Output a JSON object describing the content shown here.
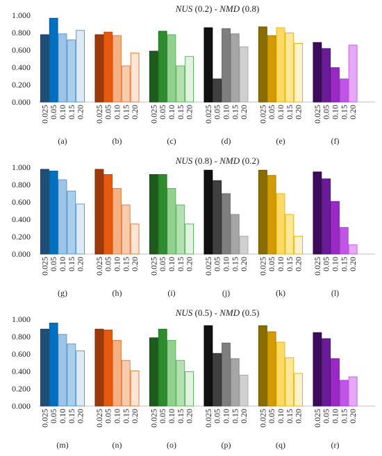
{
  "rows": [
    {
      "title_parts": [
        "NUS",
        " (0.2) - ",
        "NMD",
        " (0.8)"
      ],
      "panels": [
        "(a)",
        "(b)",
        "(c)",
        "(d)",
        "(e)",
        "(f)"
      ]
    },
    {
      "title_parts": [
        "NUS",
        " (0.8) - ",
        "NMD",
        " (0.2)"
      ],
      "panels": [
        "(g)",
        "(h)",
        "(i)",
        "(j)",
        "(k)",
        "(l)"
      ]
    },
    {
      "title_parts": [
        "NUS",
        " (0.5) - ",
        "NMD",
        " (0.5)"
      ],
      "panels": [
        "(m)",
        "(n)",
        "(o)",
        "(p)",
        "(q)",
        "(r)"
      ]
    }
  ],
  "chart_data": {
    "type": "bar",
    "categories": [
      "0.025",
      "0.05",
      "0.10",
      "0.15",
      "0.20"
    ],
    "y_tick_labels": [
      "0.000",
      "0.200",
      "0.400",
      "0.600",
      "0.800",
      "1.000"
    ],
    "ylim": [
      0,
      1
    ],
    "grid": false,
    "palettes": [
      {
        "fill": [
          "#1f4e79",
          "#0070c0",
          "#9dc3e6",
          "#a9cfec",
          "#deebf7"
        ],
        "stroke": [
          "#163a5c",
          "#005a9c",
          "#5b9bd5",
          "#5b9bd5",
          "#5b9bd5"
        ]
      },
      {
        "fill": [
          "#9c3a0a",
          "#e8590c",
          "#f4b183",
          "#f8cbad",
          "#fce4d6"
        ],
        "stroke": [
          "#7a2c06",
          "#c44a08",
          "#e67e3a",
          "#e67e3a",
          "#e67e3a"
        ]
      },
      {
        "fill": [
          "#1e5c1e",
          "#2e8b2e",
          "#92d08f",
          "#b5e0b2",
          "#e2f3e0"
        ],
        "stroke": [
          "#154515",
          "#227022",
          "#5cb85c",
          "#5cb85c",
          "#5cb85c"
        ]
      },
      {
        "fill": [
          "#111111",
          "#404040",
          "#7f7f7f",
          "#a6a6a6",
          "#d0d0d0"
        ],
        "stroke": [
          "#000000",
          "#2a2a2a",
          "#666666",
          "#888888",
          "#aaaaaa"
        ]
      },
      {
        "fill": [
          "#8a6d00",
          "#d49b00",
          "#ffd966",
          "#ffe699",
          "#fff2cc"
        ],
        "stroke": [
          "#6b5400",
          "#b08000",
          "#e6b800",
          "#e6b800",
          "#e6b800"
        ]
      },
      {
        "fill": [
          "#3d0a5c",
          "#6a1b9a",
          "#9b27c7",
          "#c055e8",
          "#e6a8f7"
        ],
        "stroke": [
          "#2a0640",
          "#4e1272",
          "#7a1fa0",
          "#a040d0",
          "#c060e8"
        ]
      }
    ],
    "panels": [
      {
        "label": "(a)",
        "values": [
          0.78,
          0.97,
          0.79,
          0.72,
          0.83
        ]
      },
      {
        "label": "(b)",
        "values": [
          0.78,
          0.81,
          0.77,
          0.42,
          0.57
        ]
      },
      {
        "label": "(c)",
        "values": [
          0.59,
          0.82,
          0.78,
          0.42,
          0.53
        ]
      },
      {
        "label": "(d)",
        "values": [
          0.86,
          0.27,
          0.85,
          0.79,
          0.64
        ]
      },
      {
        "label": "(e)",
        "values": [
          0.87,
          0.77,
          0.86,
          0.8,
          0.68
        ]
      },
      {
        "label": "(f)",
        "values": [
          0.69,
          0.62,
          0.4,
          0.27,
          0.66
        ]
      },
      {
        "label": "(g)",
        "values": [
          0.98,
          0.96,
          0.86,
          0.73,
          0.58
        ]
      },
      {
        "label": "(h)",
        "values": [
          0.98,
          0.92,
          0.76,
          0.57,
          0.35
        ]
      },
      {
        "label": "(i)",
        "values": [
          0.92,
          0.92,
          0.76,
          0.57,
          0.35
        ]
      },
      {
        "label": "(j)",
        "values": [
          0.97,
          0.85,
          0.7,
          0.46,
          0.21
        ]
      },
      {
        "label": "(k)",
        "values": [
          0.97,
          0.91,
          0.7,
          0.46,
          0.21
        ]
      },
      {
        "label": "(l)",
        "values": [
          0.95,
          0.87,
          0.61,
          0.31,
          0.11
        ]
      },
      {
        "label": "(m)",
        "values": [
          0.89,
          0.96,
          0.83,
          0.72,
          0.64
        ]
      },
      {
        "label": "(n)",
        "values": [
          0.89,
          0.88,
          0.76,
          0.53,
          0.41
        ]
      },
      {
        "label": "(o)",
        "values": [
          0.79,
          0.89,
          0.76,
          0.53,
          0.4
        ]
      },
      {
        "label": "(p)",
        "values": [
          0.93,
          0.61,
          0.73,
          0.55,
          0.36
        ]
      },
      {
        "label": "(q)",
        "values": [
          0.93,
          0.86,
          0.74,
          0.56,
          0.38
        ]
      },
      {
        "label": "(r)",
        "values": [
          0.85,
          0.78,
          0.55,
          0.3,
          0.34
        ]
      }
    ]
  }
}
